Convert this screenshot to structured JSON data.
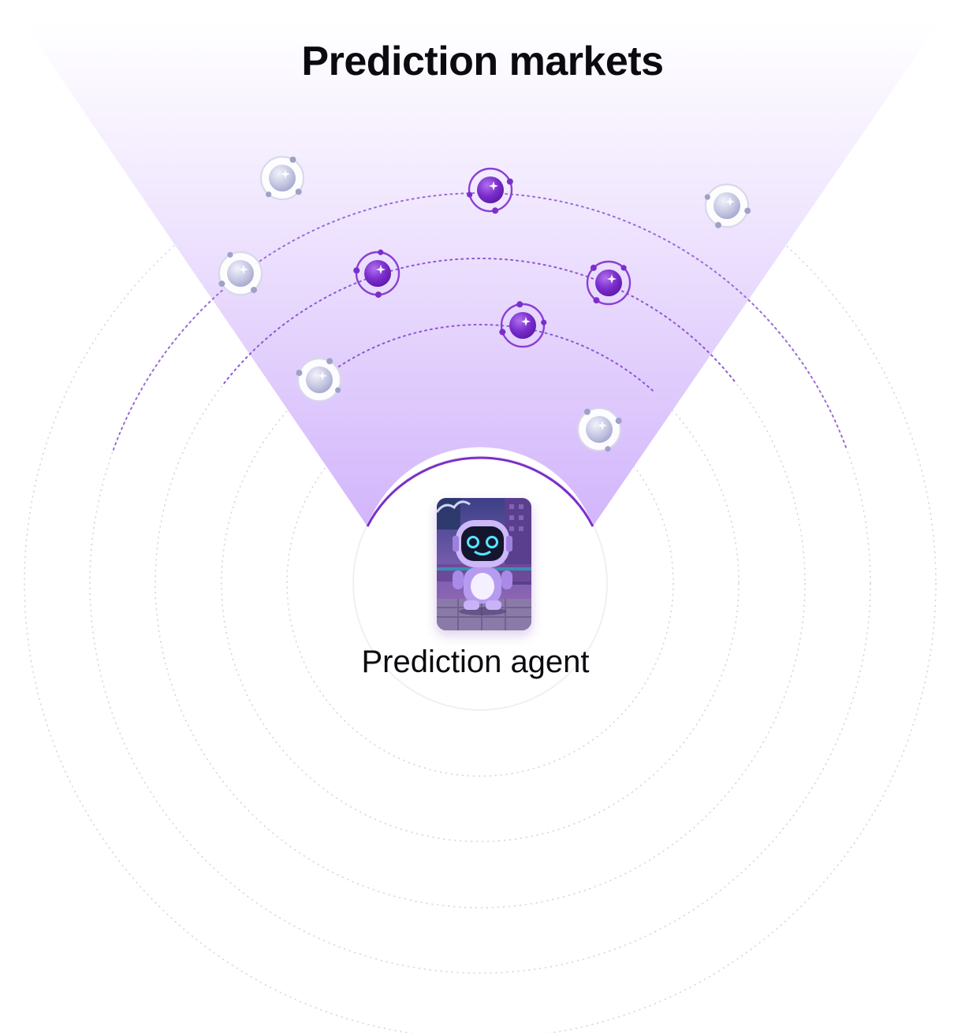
{
  "title": "Prediction markets",
  "agent": {
    "label": "Prediction agent",
    "icon": "robot-agent-icon"
  },
  "colors": {
    "accent": "#7b2fc9",
    "cone_top": "#ffffff",
    "cone_bottom": "#d4b8fb",
    "active_node": "#7b2fc9",
    "inactive_node": "#b8bad8",
    "ring_line": "#d6d6dc"
  },
  "markets": [
    {
      "state": "inactive"
    },
    {
      "state": "active"
    },
    {
      "state": "inactive"
    },
    {
      "state": "inactive"
    },
    {
      "state": "active"
    },
    {
      "state": "active"
    },
    {
      "state": "active"
    },
    {
      "state": "inactive"
    },
    {
      "state": "inactive"
    }
  ]
}
